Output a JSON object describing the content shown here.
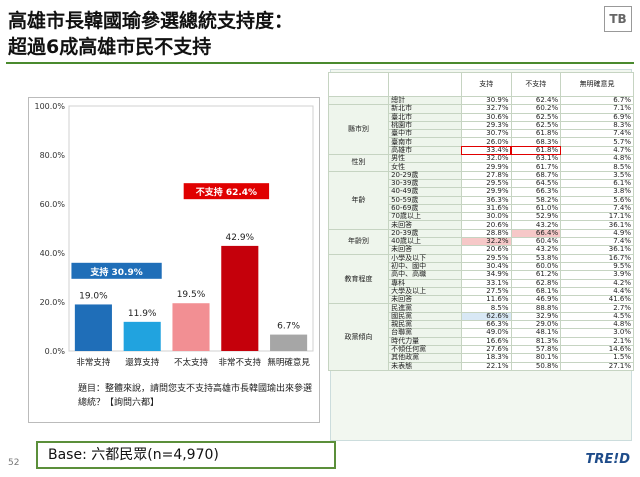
{
  "title": {
    "line1": "高雄市長韓國瑜參選總統支持度：",
    "line2": "超過6成高雄市民不支持"
  },
  "logo_text": "TB",
  "chart_data": {
    "type": "bar",
    "categories": [
      "非常支持",
      "還算支持",
      "不太支持",
      "非常不支持",
      "無明確意見"
    ],
    "values": [
      19.0,
      11.9,
      19.5,
      42.9,
      6.7
    ],
    "value_labels": [
      "19.0%",
      "11.9%",
      "19.5%",
      "42.9%",
      "6.7%"
    ],
    "colors": [
      "#1f6eb8",
      "#21a3df",
      "#f28f93",
      "#c5000b",
      "#a6a6a6"
    ],
    "ylim": [
      0,
      100
    ],
    "yticks": [
      "0.0%",
      "20.0%",
      "40.0%",
      "60.0%",
      "80.0%",
      "100.0%"
    ],
    "grid": false,
    "annotations": [
      {
        "text": "支持 30.9%",
        "color": "#1f6eb8"
      },
      {
        "text": "不支持 62.4%",
        "color": "#e00000"
      }
    ]
  },
  "note": "題目：整體來說，請問您支不支持高雄市長韓國瑜出來參選總統？【詢問六都】",
  "base": "Base: 六都民眾(n=4,970)",
  "page_number": "52",
  "table": {
    "headers": [
      "支持",
      "不支持",
      "無明確意見"
    ],
    "total": {
      "label": "總計",
      "values": [
        "30.9%",
        "62.4%",
        "6.7%"
      ]
    },
    "groups": [
      {
        "name": "縣市別",
        "rows": [
          {
            "label": "新北市",
            "values": [
              "32.7%",
              "60.2%",
              "7.1%"
            ]
          },
          {
            "label": "臺北市",
            "values": [
              "30.6%",
              "62.5%",
              "6.9%"
            ]
          },
          {
            "label": "桃園市",
            "values": [
              "29.3%",
              "62.5%",
              "8.3%"
            ]
          },
          {
            "label": "臺中市",
            "values": [
              "30.7%",
              "61.8%",
              "7.4%"
            ]
          },
          {
            "label": "臺南市",
            "values": [
              "26.0%",
              "68.3%",
              "5.7%"
            ]
          },
          {
            "label": "高雄市",
            "values": [
              "33.4%",
              "61.8%",
              "4.7%"
            ]
          }
        ]
      },
      {
        "name": "性別",
        "rows": [
          {
            "label": "男性",
            "values": [
              "32.0%",
              "63.1%",
              "4.8%"
            ]
          },
          {
            "label": "女性",
            "values": [
              "29.9%",
              "61.7%",
              "8.5%"
            ]
          }
        ]
      },
      {
        "name": "年齡",
        "rows": [
          {
            "label": "20-29歲",
            "values": [
              "27.8%",
              "68.7%",
              "3.5%"
            ]
          },
          {
            "label": "30-39歲",
            "values": [
              "29.5%",
              "64.5%",
              "6.1%"
            ]
          },
          {
            "label": "40-49歲",
            "values": [
              "29.9%",
              "66.3%",
              "3.8%"
            ]
          },
          {
            "label": "50-59歲",
            "values": [
              "36.3%",
              "58.2%",
              "5.6%"
            ]
          },
          {
            "label": "60-69歲",
            "values": [
              "31.6%",
              "61.0%",
              "7.4%"
            ]
          },
          {
            "label": "70歲以上",
            "values": [
              "30.0%",
              "52.9%",
              "17.1%"
            ]
          },
          {
            "label": "未回答",
            "values": [
              "20.6%",
              "43.2%",
              "36.1%"
            ]
          }
        ]
      },
      {
        "name": "年齡別",
        "rows": [
          {
            "label": "20-39歲",
            "values": [
              "28.8%",
              "66.4%",
              "4.9%"
            ]
          },
          {
            "label": "40歲以上",
            "values": [
              "32.2%",
              "60.4%",
              "7.4%"
            ]
          },
          {
            "label": "未回答",
            "values": [
              "20.6%",
              "43.2%",
              "36.1%"
            ]
          }
        ]
      },
      {
        "name": "教育程度",
        "rows": [
          {
            "label": "小學及以下",
            "values": [
              "29.5%",
              "53.8%",
              "16.7%"
            ]
          },
          {
            "label": "初中、國中",
            "values": [
              "30.4%",
              "60.0%",
              "9.5%"
            ]
          },
          {
            "label": "高中、高職",
            "values": [
              "34.9%",
              "61.2%",
              "3.9%"
            ]
          },
          {
            "label": "專科",
            "values": [
              "33.1%",
              "62.8%",
              "4.2%"
            ]
          },
          {
            "label": "大學及以上",
            "values": [
              "27.5%",
              "68.1%",
              "4.4%"
            ]
          },
          {
            "label": "未回答",
            "values": [
              "11.6%",
              "46.9%",
              "41.6%"
            ]
          }
        ]
      },
      {
        "name": "政黨傾向",
        "rows": [
          {
            "label": "民進黨",
            "values": [
              "8.5%",
              "88.8%",
              "2.7%"
            ]
          },
          {
            "label": "國民黨",
            "values": [
              "62.6%",
              "32.9%",
              "4.5%"
            ]
          },
          {
            "label": "親民黨",
            "values": [
              "66.3%",
              "29.0%",
              "4.8%"
            ]
          },
          {
            "label": "台聯黨",
            "values": [
              "49.0%",
              "48.1%",
              "3.0%"
            ]
          },
          {
            "label": "時代力量",
            "values": [
              "16.6%",
              "81.3%",
              "2.1%"
            ]
          },
          {
            "label": "不傾任何黨",
            "values": [
              "27.6%",
              "57.8%",
              "14.6%"
            ]
          },
          {
            "label": "其他政黨",
            "values": [
              "18.3%",
              "80.1%",
              "1.5%"
            ]
          },
          {
            "label": "未表態",
            "values": [
              "22.1%",
              "50.8%",
              "27.1%"
            ]
          }
        ]
      }
    ]
  },
  "footer_logo": "TRE!D"
}
